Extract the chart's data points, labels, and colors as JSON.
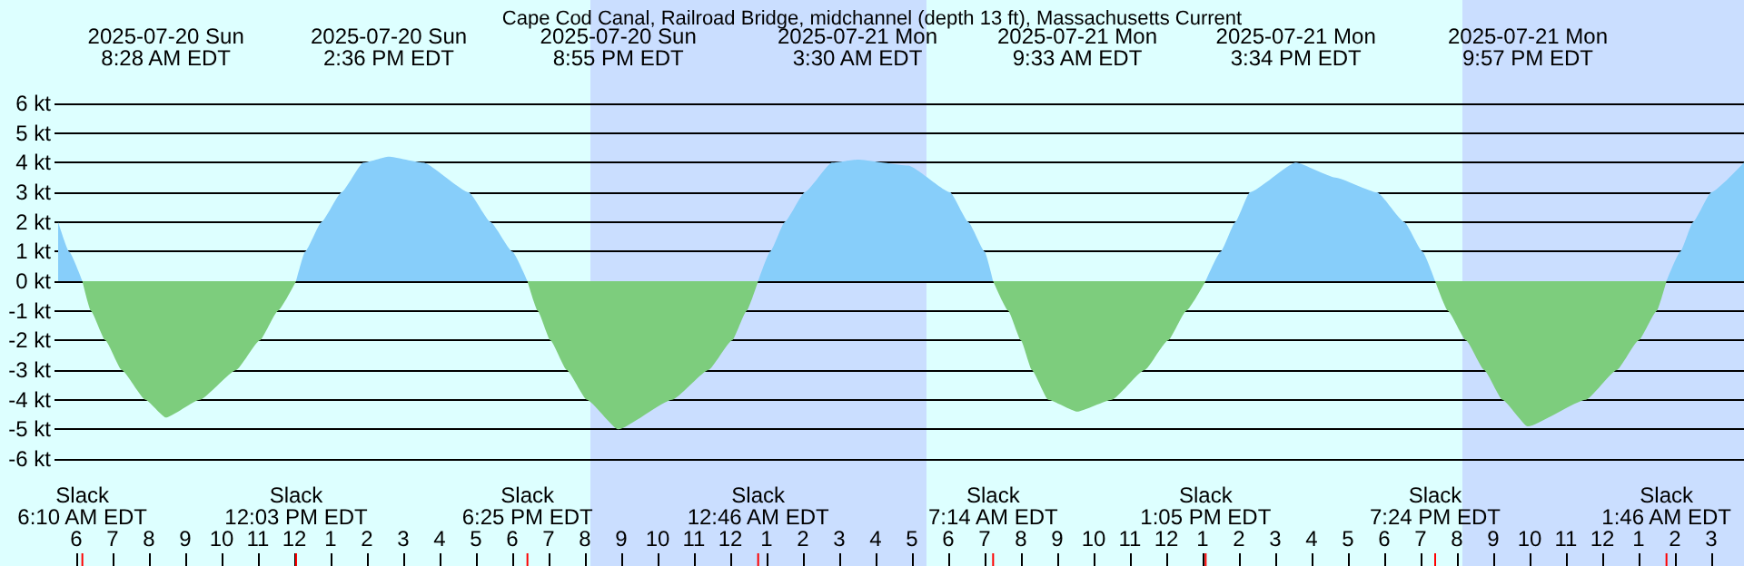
{
  "chart_data": {
    "type": "area",
    "title": "Cape Cod Canal, Railroad Bridge, midchannel (depth 13 ft), Massachusetts Current",
    "xlim": [
      "2025-07-20T05:24",
      "2025-07-22T03:54"
    ],
    "xticks": [
      {
        "value": "2025-07-20T06:00",
        "label": "6"
      },
      {
        "value": "2025-07-20T07:00",
        "label": "7"
      },
      {
        "value": "2025-07-20T08:00",
        "label": "8"
      },
      {
        "value": "2025-07-20T09:00",
        "label": "9"
      },
      {
        "value": "2025-07-20T10:00",
        "label": "10"
      },
      {
        "value": "2025-07-20T11:00",
        "label": "11"
      },
      {
        "value": "2025-07-20T12:00",
        "label": "12"
      },
      {
        "value": "2025-07-20T13:00",
        "label": "1"
      },
      {
        "value": "2025-07-20T14:00",
        "label": "2"
      },
      {
        "value": "2025-07-20T15:00",
        "label": "3"
      },
      {
        "value": "2025-07-20T16:00",
        "label": "4"
      },
      {
        "value": "2025-07-20T17:00",
        "label": "5"
      },
      {
        "value": "2025-07-20T18:00",
        "label": "6"
      },
      {
        "value": "2025-07-20T19:00",
        "label": "7"
      },
      {
        "value": "2025-07-20T20:00",
        "label": "8"
      },
      {
        "value": "2025-07-20T21:00",
        "label": "9"
      },
      {
        "value": "2025-07-20T22:00",
        "label": "10"
      },
      {
        "value": "2025-07-20T23:00",
        "label": "11"
      },
      {
        "value": "2025-07-21T00:00",
        "label": "12"
      },
      {
        "value": "2025-07-21T01:00",
        "label": "1"
      },
      {
        "value": "2025-07-21T02:00",
        "label": "2"
      },
      {
        "value": "2025-07-21T03:00",
        "label": "3"
      },
      {
        "value": "2025-07-21T04:00",
        "label": "4"
      },
      {
        "value": "2025-07-21T05:00",
        "label": "5"
      },
      {
        "value": "2025-07-21T06:00",
        "label": "6"
      },
      {
        "value": "2025-07-21T07:00",
        "label": "7"
      },
      {
        "value": "2025-07-21T08:00",
        "label": "8"
      },
      {
        "value": "2025-07-21T09:00",
        "label": "9"
      },
      {
        "value": "2025-07-21T10:00",
        "label": "10"
      },
      {
        "value": "2025-07-21T11:00",
        "label": "11"
      },
      {
        "value": "2025-07-21T12:00",
        "label": "12"
      },
      {
        "value": "2025-07-21T13:00",
        "label": "1"
      },
      {
        "value": "2025-07-21T14:00",
        "label": "2"
      },
      {
        "value": "2025-07-21T15:00",
        "label": "3"
      },
      {
        "value": "2025-07-21T16:00",
        "label": "4"
      },
      {
        "value": "2025-07-21T17:00",
        "label": "5"
      },
      {
        "value": "2025-07-21T18:00",
        "label": "6"
      },
      {
        "value": "2025-07-21T19:00",
        "label": "7"
      },
      {
        "value": "2025-07-21T20:00",
        "label": "8"
      },
      {
        "value": "2025-07-21T21:00",
        "label": "9"
      },
      {
        "value": "2025-07-21T22:00",
        "label": "10"
      },
      {
        "value": "2025-07-21T23:00",
        "label": "11"
      },
      {
        "value": "2025-07-22T00:00",
        "label": "12"
      },
      {
        "value": "2025-07-22T01:00",
        "label": "1"
      },
      {
        "value": "2025-07-22T02:00",
        "label": "2"
      },
      {
        "value": "2025-07-22T03:00",
        "label": "3"
      }
    ],
    "x2lim": [
      "2025-07-20T05:24",
      "2025-07-22T03:54"
    ],
    "x2ticks": [
      {
        "value": "2025-07-20T08:28",
        "label": "2025-07-20 Sun\n8:28 AM EDT"
      },
      {
        "value": "2025-07-20T14:36",
        "label": "2025-07-20 Sun\n2:36 PM EDT"
      },
      {
        "value": "2025-07-20T20:55",
        "label": "2025-07-20 Sun\n8:55 PM EDT"
      },
      {
        "value": "2025-07-21T03:30",
        "label": "2025-07-21 Mon\n3:30 AM EDT"
      },
      {
        "value": "2025-07-21T09:33",
        "label": "2025-07-21 Mon\n9:33 AM EDT"
      },
      {
        "value": "2025-07-21T15:34",
        "label": "2025-07-21 Mon\n3:34 PM EDT"
      },
      {
        "value": "2025-07-21T21:57",
        "label": "2025-07-21 Mon\n9:57 PM EDT"
      }
    ],
    "ref_lines": [
      {
        "axis": "x",
        "value": "2025-07-20T06:10",
        "label": "Slack\n6:10 AM EDT",
        "color": "#ff0000"
      },
      {
        "axis": "x",
        "value": "2025-07-20T12:03",
        "label": "Slack\n12:03 PM EDT",
        "color": "#ff0000"
      },
      {
        "axis": "x",
        "value": "2025-07-20T18:25",
        "label": "Slack\n6:25 PM EDT",
        "color": "#ff0000"
      },
      {
        "axis": "x",
        "value": "2025-07-21T00:46",
        "label": "Slack\n12:46 AM EDT",
        "color": "#ff0000"
      },
      {
        "axis": "x",
        "value": "2025-07-21T07:14",
        "label": "Slack\n7:14 AM EDT",
        "color": "#ff0000"
      },
      {
        "axis": "x",
        "value": "2025-07-21T13:05",
        "label": "Slack\n1:05 PM EDT",
        "color": "#ff0000"
      },
      {
        "axis": "x",
        "value": "2025-07-21T19:24",
        "label": "Slack\n7:24 PM EDT",
        "color": "#ff0000"
      },
      {
        "axis": "x",
        "value": "2025-07-22T01:46",
        "label": "Slack\n1:46 AM EDT",
        "color": "#ff0000"
      }
    ],
    "ylim": [
      -6,
      6
    ],
    "yticks": [
      {
        "value": -6,
        "label": "-6 kt"
      },
      {
        "value": -5,
        "label": "-5 kt"
      },
      {
        "value": -4,
        "label": "-4 kt"
      },
      {
        "value": -3,
        "label": "-3 kt"
      },
      {
        "value": -2,
        "label": "-2 kt"
      },
      {
        "value": -1,
        "label": "-1 kt"
      },
      {
        "value": 0,
        "label": "0 kt"
      },
      {
        "value": 1,
        "label": "1 kt"
      },
      {
        "value": 2,
        "label": "2 kt"
      },
      {
        "value": 3,
        "label": "3 kt"
      },
      {
        "value": 4,
        "label": "4 kt"
      },
      {
        "value": 5,
        "label": "5 kt"
      },
      {
        "value": 6,
        "label": "6 kt"
      }
    ],
    "grid": "y",
    "series": [
      {
        "color": "#87cefa",
        "x": [
          "2025-07-20T05:30",
          "2025-07-20T05:48",
          "2025-07-20T06:10",
          "2025-07-20T09:00",
          "2025-07-20T12:03",
          "2025-07-20T12:18",
          "2025-07-20T12:45",
          "2025-07-20T13:18",
          "2025-07-20T13:54",
          "2025-07-20T14:36",
          "2025-07-20T15:33",
          "2025-07-20T16:48",
          "2025-07-20T17:24",
          "2025-07-20T18:00",
          "2025-07-20T18:25",
          "2025-07-20T21:00",
          "2025-07-21T00:46",
          "2025-07-21T01:06",
          "2025-07-21T01:30",
          "2025-07-21T02:03",
          "2025-07-21T02:48",
          "2025-07-21T03:30",
          "2025-07-21T04:54",
          "2025-07-21T06:03",
          "2025-07-21T06:33",
          "2025-07-21T07:00",
          "2025-07-21T07:14",
          "2025-07-21T10:00",
          "2025-07-21T13:05",
          "2025-07-21T13:30",
          "2025-07-21T13:54",
          "2025-07-21T14:18",
          "2025-07-21T15:34",
          "2025-07-21T16:39",
          "2025-07-21T17:48",
          "2025-07-21T18:33",
          "2025-07-21T19:03",
          "2025-07-21T19:24",
          "2025-07-21T22:00",
          "2025-07-22T01:46",
          "2025-07-22T02:09",
          "2025-07-22T02:30",
          "2025-07-22T03:00",
          "2025-07-22T03:54"
        ],
        "values": [
          2,
          1,
          0,
          null,
          0,
          1,
          2,
          3,
          4,
          4.2,
          4,
          3,
          2,
          1,
          0,
          null,
          0,
          1,
          2,
          3,
          4,
          4.1,
          3.9,
          3,
          2,
          1,
          0,
          null,
          0,
          1,
          2,
          3,
          4.0,
          3.5,
          3,
          2,
          1,
          0,
          null,
          0,
          1,
          2,
          3,
          4.0
        ]
      },
      {
        "color": "#7dcd7d",
        "x": [
          "2025-07-20T06:10",
          "2025-07-20T06:24",
          "2025-07-20T06:48",
          "2025-07-20T07:15",
          "2025-07-20T07:54",
          "2025-07-20T08:28",
          "2025-07-20T09:24",
          "2025-07-20T10:24",
          "2025-07-20T11:03",
          "2025-07-20T11:33",
          "2025-07-20T12:03",
          "2025-07-20T15:00",
          "2025-07-20T18:25",
          "2025-07-20T18:42",
          "2025-07-20T19:03",
          "2025-07-20T19:30",
          "2025-07-20T20:03",
          "2025-07-20T20:55",
          "2025-07-20T22:24",
          "2025-07-20T23:24",
          "2025-07-21T00:03",
          "2025-07-21T00:27",
          "2025-07-21T00:46",
          "2025-07-21T04:00",
          "2025-07-21T07:14",
          "2025-07-21T07:39",
          "2025-07-21T08:00",
          "2025-07-21T08:18",
          "2025-07-21T08:45",
          "2025-07-21T09:33",
          "2025-07-21T10:30",
          "2025-07-21T11:24",
          "2025-07-21T12:03",
          "2025-07-21T12:33",
          "2025-07-21T13:05",
          "2025-07-21T16:00",
          "2025-07-21T19:24",
          "2025-07-21T19:45",
          "2025-07-21T20:15",
          "2025-07-21T20:45",
          "2025-07-21T21:15",
          "2025-07-21T21:57",
          "2025-07-21T23:33",
          "2025-07-22T00:24",
          "2025-07-22T01:00",
          "2025-07-22T01:30",
          "2025-07-22T01:46"
        ],
        "values": [
          0,
          -1,
          -2,
          -3,
          -4,
          -4.6,
          -4,
          -3,
          -2,
          -1,
          0,
          null,
          0,
          -1,
          -2,
          -3,
          -4,
          -5.0,
          -4,
          -3,
          -2,
          -1,
          0,
          null,
          0,
          -1,
          -2,
          -3,
          -4,
          -4.4,
          -4,
          -3,
          -2,
          -1,
          0,
          null,
          0,
          -1,
          -2,
          -3,
          -4,
          -4.9,
          -4,
          -3,
          -2,
          -1,
          0
        ]
      }
    ],
    "bands": [
      {
        "axis": "x",
        "from": "2025-07-20T05:24",
        "to": "2025-07-20T20:09",
        "color": "#ddffff"
      },
      {
        "axis": "x",
        "from": "2025-07-20T20:09",
        "to": "2025-07-21T05:24",
        "color": "#cadeff"
      },
      {
        "axis": "x",
        "from": "2025-07-21T05:24",
        "to": "2025-07-21T20:09",
        "color": "#ddffff"
      },
      {
        "axis": "x",
        "from": "2025-07-21T20:09",
        "to": "2025-07-22T03:54",
        "color": "#cadeff"
      }
    ]
  }
}
